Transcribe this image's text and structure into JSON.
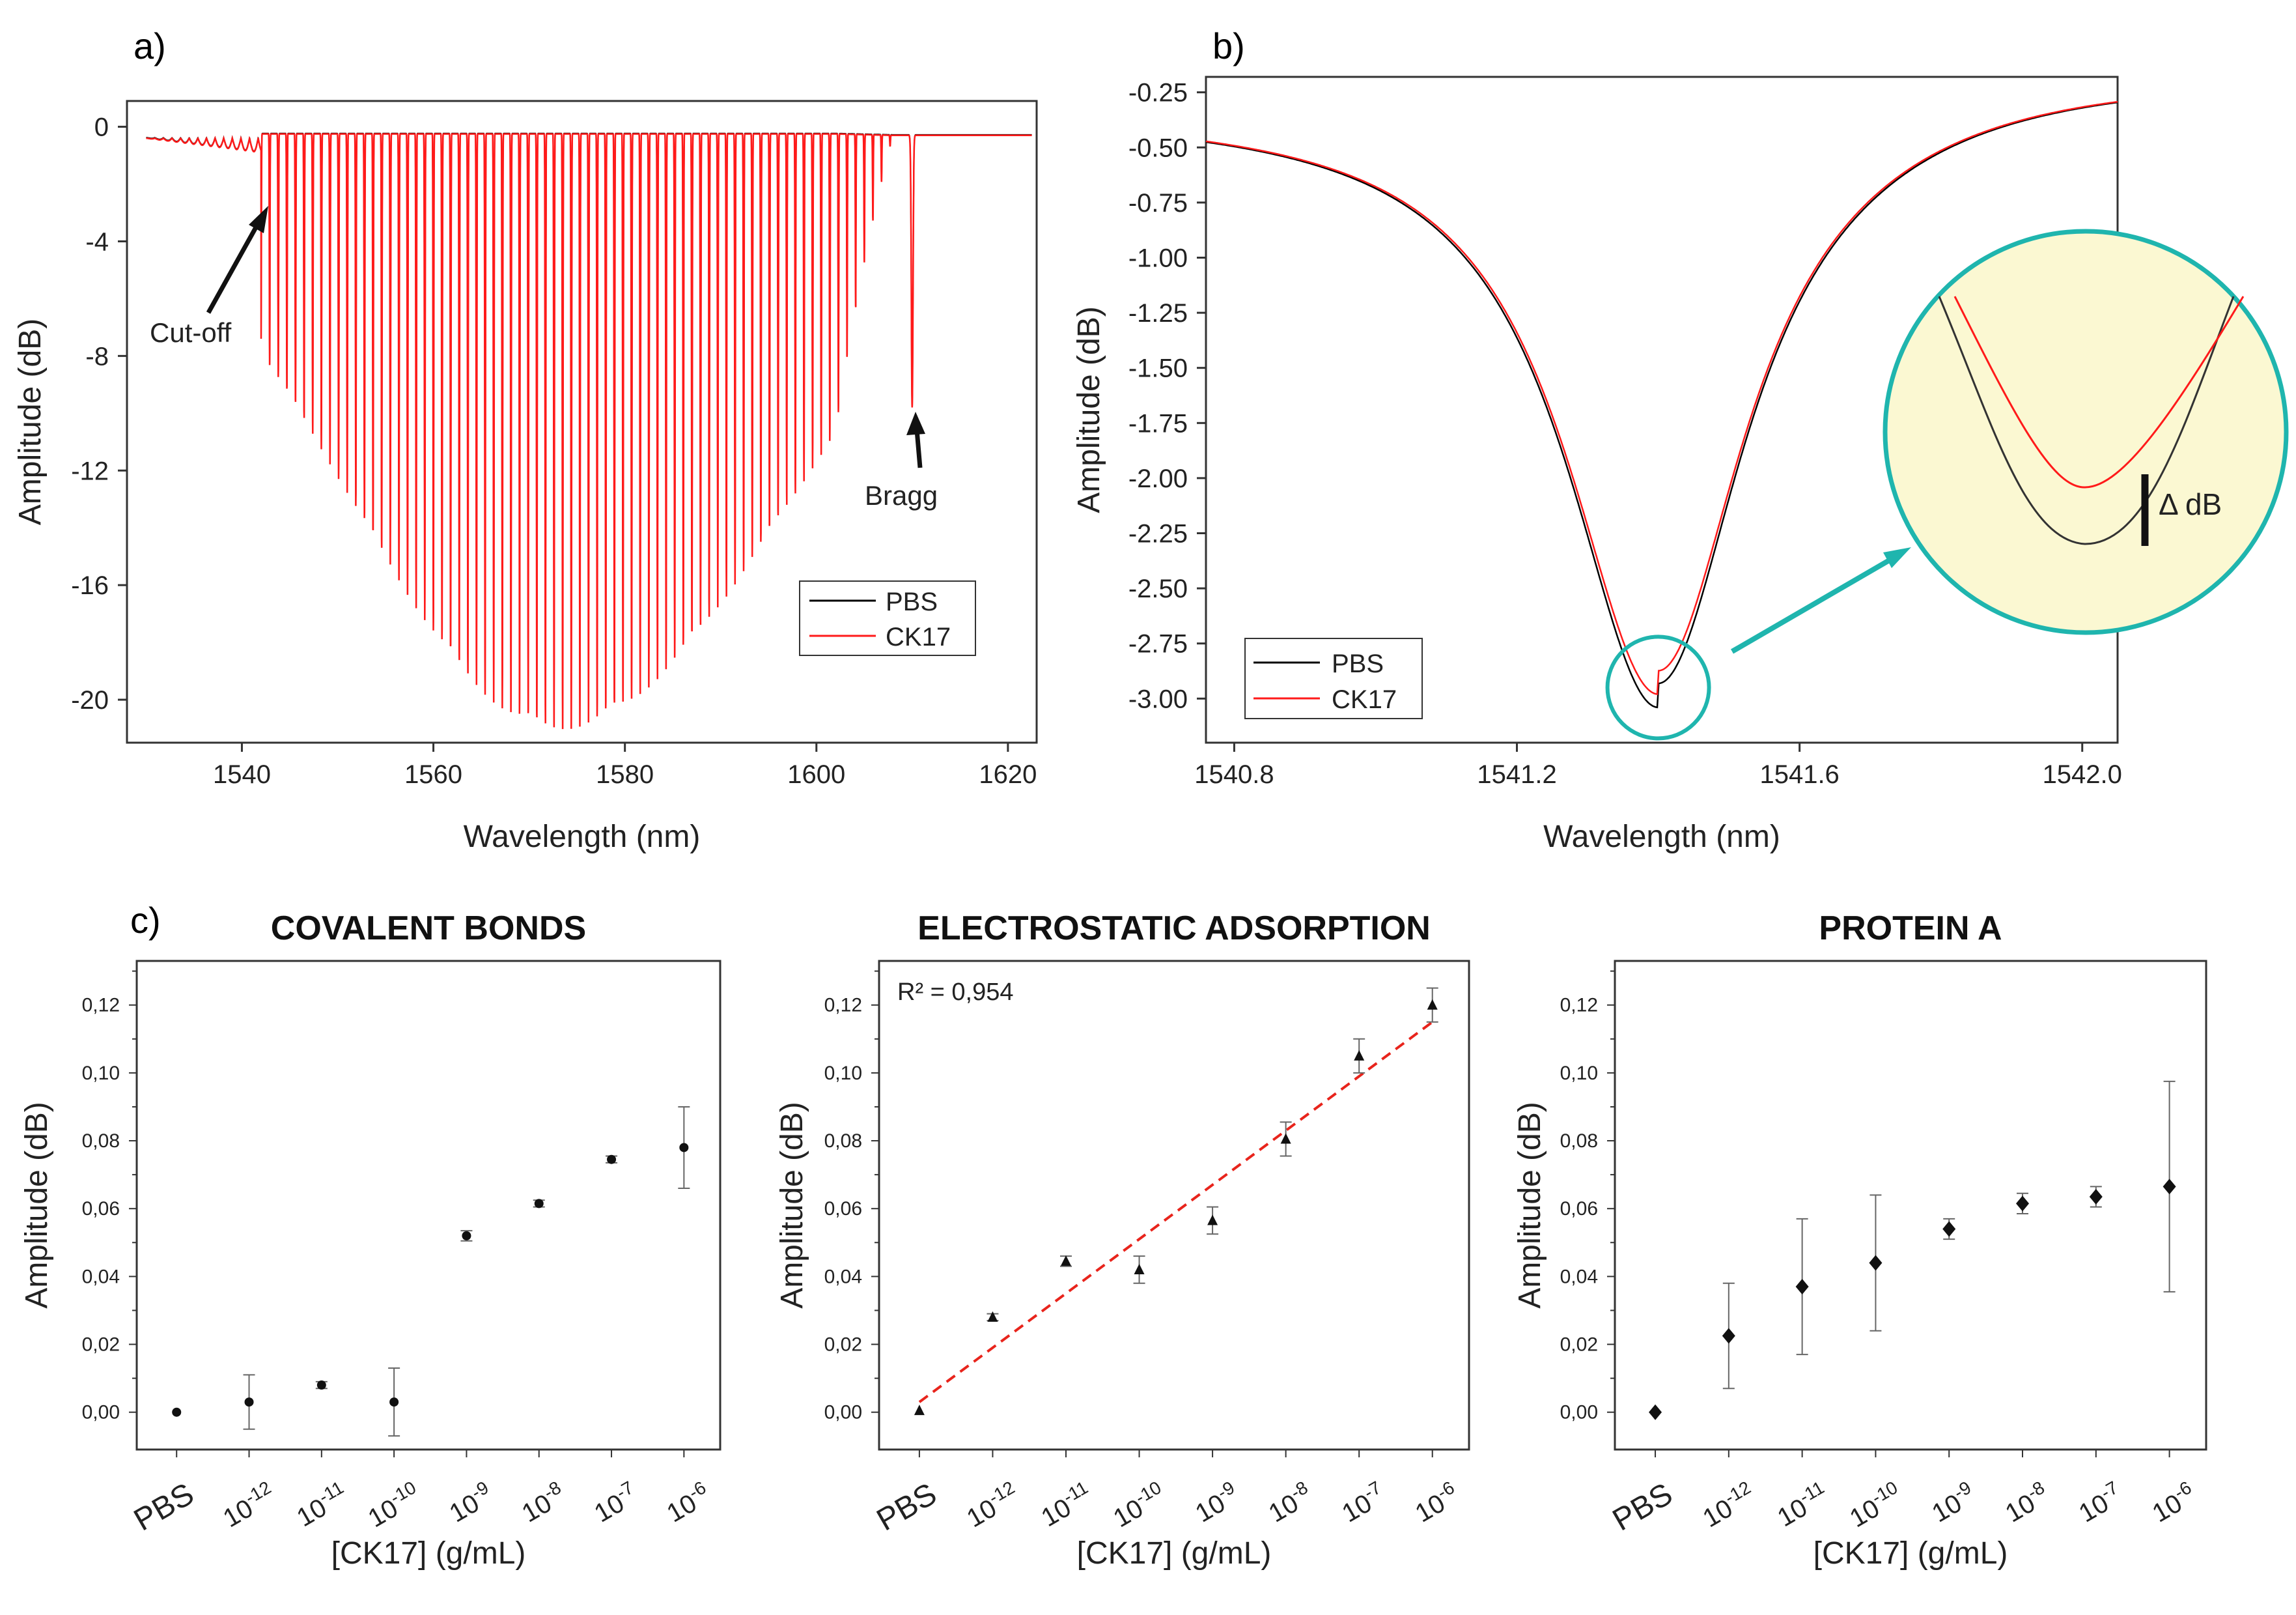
{
  "panels": {
    "a": {
      "label": "a)"
    },
    "b": {
      "label": "b)"
    },
    "c": {
      "label": "c)"
    }
  },
  "inset": {
    "annotation": "Δ dB"
  },
  "chart_data": [
    {
      "id": "a",
      "type": "line",
      "xlabel": "Wavelength (nm)",
      "ylabel": "Amplitude (dB)",
      "xlim": [
        1528,
        1623
      ],
      "ylim": [
        -21.5,
        0.9
      ],
      "xticks": [
        1540,
        1560,
        1580,
        1600,
        1620
      ],
      "yticks": [
        0,
        -4,
        -8,
        -12,
        -16,
        -20
      ],
      "series": [
        {
          "name": "PBS",
          "color": "#000000"
        },
        {
          "name": "CK17",
          "color": "#ff1a1a"
        }
      ],
      "comb": {
        "start": 1530,
        "cutoff": 1542,
        "end": 1608,
        "period": 0.9,
        "peak_center": 1573,
        "peak_depth": -20.8,
        "envelope_left_width": 31,
        "envelope_right_width": 35,
        "baseline": -0.3
      },
      "bragg": {
        "x": 1610,
        "depth": -9.5
      },
      "annotations": [
        {
          "text": "Cut-off",
          "x": 1541,
          "y": -3
        },
        {
          "text": "Bragg",
          "x": 1610,
          "y": -10
        }
      ],
      "legend": "bottom-right"
    },
    {
      "id": "b",
      "type": "line",
      "xlabel": "Wavelength (nm)",
      "ylabel": "Amplitude (dB)",
      "xlim": [
        1540.76,
        1542.05
      ],
      "ylim": [
        -3.2,
        -0.18
      ],
      "xticks": [
        1540.8,
        1541.2,
        1541.6,
        1542.0
      ],
      "ytick_labels": [
        "-0.25",
        "-0.50",
        "-0.75",
        "-1.00",
        "-1.25",
        "-1.50",
        "-1.75",
        "-2.00",
        "-2.25",
        "-2.50",
        "-2.75",
        "-3.00"
      ],
      "yticks": [
        -0.25,
        -0.5,
        -0.75,
        -1.0,
        -1.25,
        -1.5,
        -1.75,
        -2.0,
        -2.25,
        -2.5,
        -2.75,
        -3.0
      ],
      "dip": {
        "center": 1541.4,
        "width": 0.16,
        "baseline_left": -0.32,
        "baseline_right": -0.16
      },
      "series": [
        {
          "name": "PBS",
          "color": "#000000",
          "min": -3.04
        },
        {
          "name": "CK17",
          "color": "#ff1a1a",
          "min": -2.98
        }
      ],
      "legend": "bottom-left"
    },
    {
      "id": "c1",
      "type": "scatter",
      "title": "COVALENT BONDS",
      "xlabel": "[CK17] (g/mL)",
      "ylabel": "Amplitude (dB)",
      "ylim": [
        -0.011,
        0.133
      ],
      "ytick_labels": [
        "0,00",
        "0,02",
        "0,04",
        "0,06",
        "0,08",
        "0,10",
        "0,12"
      ],
      "yticks": [
        0,
        0.02,
        0.04,
        0.06,
        0.08,
        0.1,
        0.12
      ],
      "categories": [
        "PBS",
        "-12",
        "-11",
        "-10",
        "-9",
        "-8",
        "-7",
        "-6"
      ],
      "values": [
        0.0,
        0.003,
        0.008,
        0.003,
        0.052,
        0.0615,
        0.0745,
        0.078
      ],
      "errors": [
        0,
        0.008,
        0.001,
        0.01,
        0.0015,
        0.001,
        0.001,
        0.012
      ],
      "marker": "circle"
    },
    {
      "id": "c2",
      "type": "scatter",
      "title": "ELECTROSTATIC ADSORPTION",
      "xlabel": "[CK17] (g/mL)",
      "ylabel": "Amplitude (dB)",
      "ylim": [
        -0.011,
        0.133
      ],
      "ytick_labels": [
        "0,00",
        "0,02",
        "0,04",
        "0,06",
        "0,08",
        "0,10",
        "0,12"
      ],
      "yticks": [
        0,
        0.02,
        0.04,
        0.06,
        0.08,
        0.1,
        0.12
      ],
      "categories": [
        "PBS",
        "-12",
        "-11",
        "-10",
        "-9",
        "-8",
        "-7",
        "-6"
      ],
      "values": [
        0.0005,
        0.028,
        0.0445,
        0.042,
        0.0565,
        0.0805,
        0.105,
        0.12
      ],
      "errors": [
        0,
        0.001,
        0.0015,
        0.004,
        0.004,
        0.005,
        0.005,
        0.005
      ],
      "marker": "triangle",
      "fit": {
        "y_start": 0.003,
        "y_end": 0.115,
        "color": "#e8241c",
        "r2_label": "R² = 0,954"
      }
    },
    {
      "id": "c3",
      "type": "scatter",
      "title": "PROTEIN A",
      "xlabel": "[CK17] (g/mL)",
      "ylabel": "Amplitude (dB)",
      "ylim": [
        -0.011,
        0.133
      ],
      "ytick_labels": [
        "0,00",
        "0,02",
        "0,04",
        "0,06",
        "0,08",
        "0,10",
        "0,12"
      ],
      "yticks": [
        0,
        0.02,
        0.04,
        0.06,
        0.08,
        0.1,
        0.12
      ],
      "categories": [
        "PBS",
        "-12",
        "-11",
        "-10",
        "-9",
        "-8",
        "-7",
        "-6"
      ],
      "values": [
        0.0,
        0.0225,
        0.037,
        0.044,
        0.054,
        0.0615,
        0.0635,
        0.0665
      ],
      "errors": [
        0,
        0.0155,
        0.02,
        0.02,
        0.003,
        0.003,
        0.003,
        0.031
      ],
      "marker": "diamond"
    }
  ]
}
